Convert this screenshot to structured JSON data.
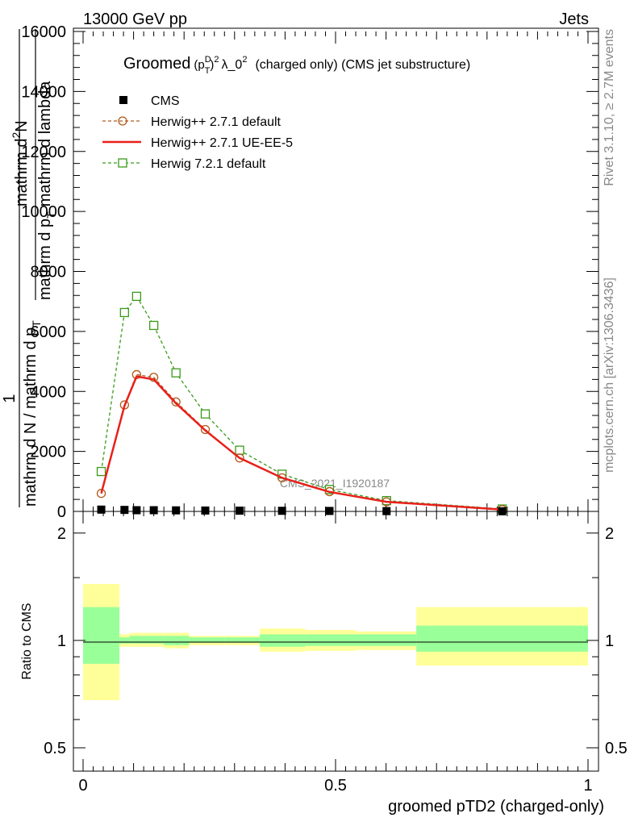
{
  "header": {
    "left": "13000 GeV pp",
    "right": "Jets"
  },
  "side": {
    "rivet": "Rivet 3.1.10, ≥ 2.7M events",
    "mcplots": "mcplots.cern.ch [arXiv:1306.3436]"
  },
  "watermark": "CMS_2021_I1920187",
  "chart_data": [
    {
      "type": "line",
      "title": {
        "pre": "Groomed",
        "p": "(p",
        "sub": "T",
        "sup_d": "D",
        "close": ")",
        "sup2": "2",
        "lambda": "λ_0",
        "lambda_sup": "2",
        "rest": "(charged only) (CMS jet substructure)"
      },
      "ylabel": {
        "frac_top": "1",
        "line1": "mathrm d N / mathrm d p",
        "line1_sub": "T",
        "num": "mathrm d",
        "num_sup": "2",
        "num_n": "N",
        "den": "mathrm d p",
        "den_sub": "T",
        "den2": "mathrm d lambda"
      },
      "xlim": [
        0,
        1
      ],
      "ylim": [
        0,
        16000
      ],
      "yticks": [
        "0",
        "2000",
        "4000",
        "6000",
        "8000",
        "10000",
        "12000",
        "14000",
        "16000"
      ],
      "ytick_values": [
        0,
        2000,
        4000,
        6000,
        8000,
        10000,
        12000,
        14000,
        16000
      ],
      "grid": false,
      "legend_position": "top-left",
      "x": [
        0.036,
        0.082,
        0.106,
        0.14,
        0.184,
        0.242,
        0.31,
        0.394,
        0.488,
        0.601,
        0.83
      ],
      "series": [
        {
          "name": "CMS",
          "color": "#000000",
          "marker": "filled-square",
          "values": [
            60,
            50,
            40,
            40,
            35,
            30,
            25,
            20,
            15,
            10,
            5
          ]
        },
        {
          "name": "Herwig++ 2.7.1 default",
          "color": "#b05a1a",
          "marker": "open-circle",
          "dash": true,
          "values": [
            600,
            3550,
            4560,
            4470,
            3650,
            2730,
            1780,
            1120,
            660,
            320,
            60
          ]
        },
        {
          "name": "Herwig++ 2.7.1 UE-EE-5",
          "color": "#e8201a",
          "marker": "none",
          "dash": false,
          "values": [
            600,
            3520,
            4500,
            4400,
            3600,
            2700,
            1780,
            1120,
            650,
            320,
            60
          ]
        },
        {
          "name": "Herwig 7.2.1 default",
          "color": "#3a9a1a",
          "marker": "open-square",
          "dash": true,
          "values": [
            1330,
            6630,
            7170,
            6200,
            4620,
            3250,
            2040,
            1240,
            730,
            360,
            80
          ]
        }
      ]
    },
    {
      "type": "area",
      "ylabel": "Ratio to CMS",
      "xlabel": "groomed pTD2 (charged-only)",
      "xticks": [
        "0",
        "0.5",
        "1"
      ],
      "xtick_values": [
        0,
        0.5,
        1
      ],
      "yticks": [
        "0.5",
        "1",
        "2"
      ],
      "ytick_values": [
        0.5,
        1,
        2
      ],
      "log_scale_y": true,
      "ylim": [
        0.43,
        2.3
      ],
      "bins": [
        {
          "x0": 0.0,
          "x1": 0.072,
          "inner": [
            0.86,
            1.24
          ],
          "outer": [
            0.68,
            1.44
          ]
        },
        {
          "x0": 0.072,
          "x1": 0.092,
          "inner": [
            0.98,
            1.02
          ],
          "outer": [
            0.96,
            1.04
          ]
        },
        {
          "x0": 0.092,
          "x1": 0.12,
          "inner": [
            0.98,
            1.03
          ],
          "outer": [
            0.96,
            1.05
          ]
        },
        {
          "x0": 0.12,
          "x1": 0.16,
          "inner": [
            0.98,
            1.03
          ],
          "outer": [
            0.96,
            1.05
          ]
        },
        {
          "x0": 0.16,
          "x1": 0.21,
          "inner": [
            0.97,
            1.03
          ],
          "outer": [
            0.95,
            1.05
          ]
        },
        {
          "x0": 0.21,
          "x1": 0.28,
          "inner": [
            0.985,
            1.02
          ],
          "outer": [
            0.97,
            1.03
          ]
        },
        {
          "x0": 0.28,
          "x1": 0.35,
          "inner": [
            0.985,
            1.02
          ],
          "outer": [
            0.97,
            1.03
          ]
        },
        {
          "x0": 0.35,
          "x1": 0.44,
          "inner": [
            0.96,
            1.04
          ],
          "outer": [
            0.93,
            1.08
          ]
        },
        {
          "x0": 0.44,
          "x1": 0.54,
          "inner": [
            0.965,
            1.04
          ],
          "outer": [
            0.935,
            1.07
          ]
        },
        {
          "x0": 0.54,
          "x1": 0.66,
          "inner": [
            0.965,
            1.04
          ],
          "outer": [
            0.94,
            1.06
          ]
        },
        {
          "x0": 0.66,
          "x1": 1.0,
          "inner": [
            0.93,
            1.1
          ],
          "outer": [
            0.85,
            1.24
          ]
        }
      ],
      "band_colors": {
        "inner": "#99ff99",
        "outer": "#ffff99"
      }
    }
  ]
}
